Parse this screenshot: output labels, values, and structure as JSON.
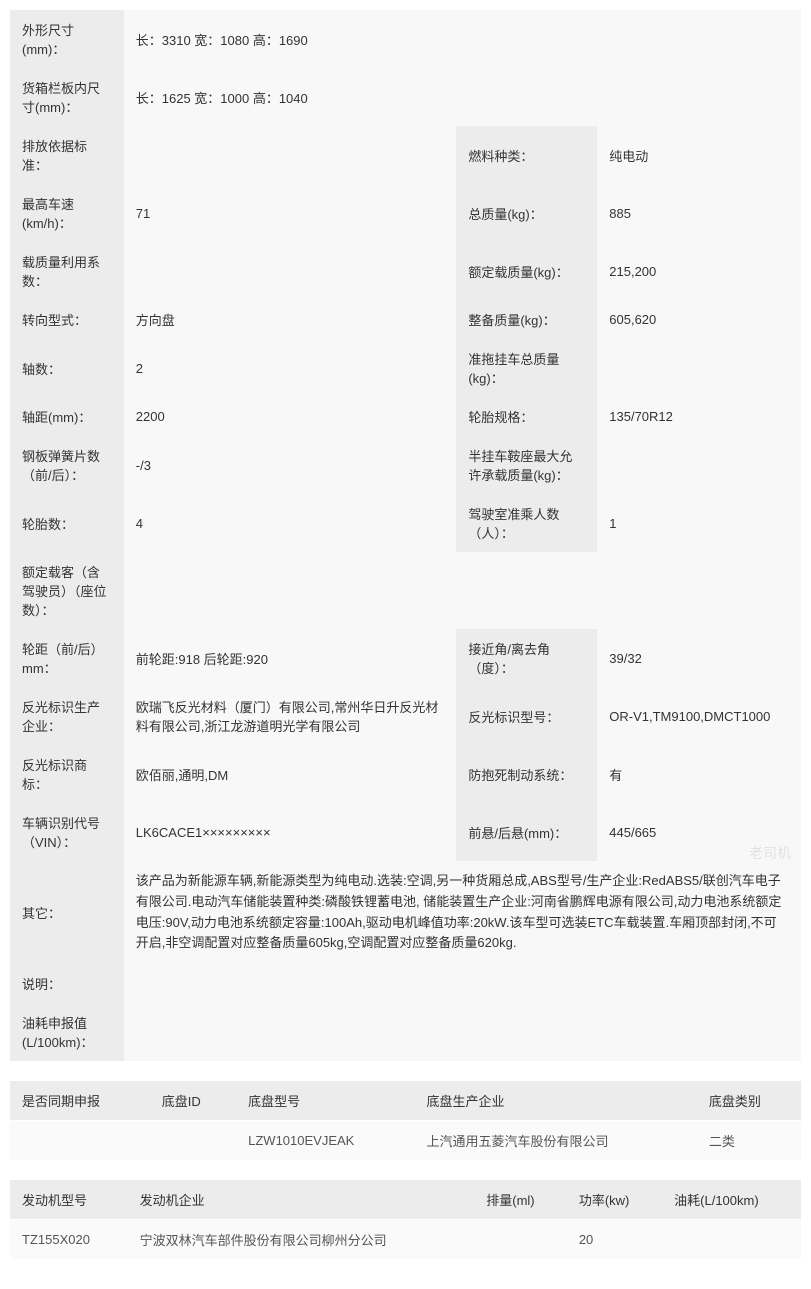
{
  "specs": {
    "dimensions_label": "外形尺寸(mm)：",
    "dimensions_value": "长：3310 宽：1080 高：1690",
    "cargo_label": "货箱栏板内尺寸(mm)：",
    "cargo_value": "长：1625 宽：1000 高：1040",
    "emission_label": "排放依据标准：",
    "emission_value": "",
    "fuel_label": "燃料种类：",
    "fuel_value": "纯电动",
    "speed_label": "最高车速(km/h)：",
    "speed_value": "71",
    "total_mass_label": "总质量(kg)：",
    "total_mass_value": "885",
    "load_ratio_label": "载质量利用系数：",
    "load_ratio_value": "",
    "rated_load_label": "额定载质量(kg)：",
    "rated_load_value": "215,200",
    "steering_label": "转向型式：",
    "steering_value": "方向盘",
    "curb_label": "整备质量(kg)：",
    "curb_value": "605,620",
    "axles_label": "轴数：",
    "axles_value": "2",
    "trailer_label": "准拖挂车总质量(kg)：",
    "trailer_value": "",
    "wheelbase_label": "轴距(mm)：",
    "wheelbase_value": "2200",
    "tire_label": "轮胎规格：",
    "tire_value": "135/70R12",
    "spring_label": "钢板弹簧片数（前/后）：",
    "spring_value": "-/3",
    "saddle_label": "半挂车鞍座最大允许承载质量(kg)：",
    "saddle_value": "",
    "tirecount_label": "轮胎数：",
    "tirecount_value": "4",
    "cab_label": "驾驶室准乘人数（人）：",
    "cab_value": "1",
    "passenger_label": "额定载客（含驾驶员）（座位数）：",
    "passenger_value": "",
    "track_label": "轮距（前/后）mm：",
    "track_value": "前轮距:918 后轮距:920",
    "angle_label": "接近角/离去角（度）：",
    "angle_value": "39/32",
    "reflector_mfg_label": "反光标识生产企业：",
    "reflector_mfg_value": "欧瑞飞反光材料（厦门）有限公司,常州华日升反光材料有限公司,浙江龙游道明光学有限公司",
    "reflector_model_label": "反光标识型号：",
    "reflector_model_value": "OR-V1,TM9100,DMCT1000",
    "reflector_brand_label": "反光标识商标：",
    "reflector_brand_value": "欧佰丽,通明,DM",
    "abs_label": "防抱死制动系统：",
    "abs_value": "有",
    "vin_label": "车辆识别代号（VIN）：",
    "vin_value": "LK6CACE1×××××××××",
    "overhang_label": "前悬/后悬(mm)：",
    "overhang_value": "445/665",
    "other_label": "其它：",
    "other_value": "该产品为新能源车辆,新能源类型为纯电动.选装:空调,另一种货厢总成,ABS型号/生产企业:RedABS5/联创汽车电子有限公司.电动汽车储能装置种类:磷酸铁锂蓄电池, 储能装置生产企业:河南省鹏辉电源有限公司,动力电池系统额定电压:90V,动力电池系统额定容量:100Ah,驱动电机峰值功率:20kW.该车型可选装ETC车载装置.车厢顶部封闭,不可开启,非空调配置对应整备质量605kg,空调配置对应整备质量620kg.",
    "note_label": "说明：",
    "note_value": "",
    "fuel_cons_label": "油耗申报值(L/100km)：",
    "fuel_cons_value": ""
  },
  "chassis": {
    "headers": [
      "是否同期申报",
      "底盘ID",
      "底盘型号",
      "底盘生产企业",
      "底盘类别"
    ],
    "row": [
      "",
      "",
      "LZW1010EVJEAK",
      "上汽通用五菱汽车股份有限公司",
      "二类"
    ]
  },
  "engine": {
    "headers": [
      "发动机型号",
      "发动机企业",
      "排量(ml)",
      "功率(kw)",
      "油耗(L/100km)"
    ],
    "row": [
      "TZ155X020",
      "宁波双林汽车部件股份有限公司柳州分公司",
      "",
      "20",
      ""
    ]
  },
  "watermark": "老司机",
  "colors": {
    "label_bg": "#ececec",
    "value_bg": "#f8f8f8",
    "text": "#333333",
    "value_text": "#555555"
  }
}
